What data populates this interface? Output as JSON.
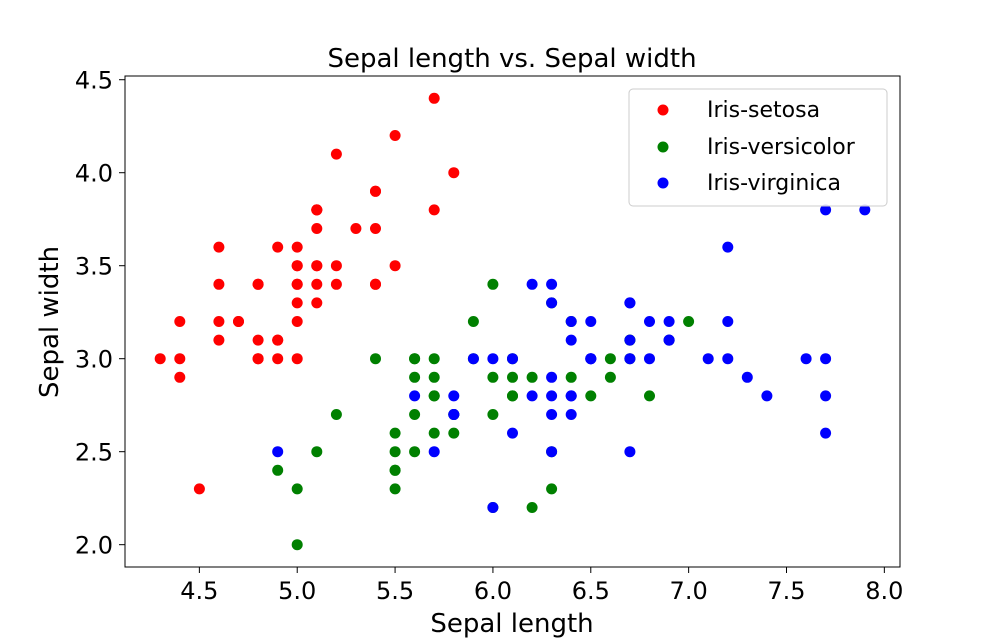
{
  "chart_data": {
    "type": "scatter",
    "title": "Sepal length vs. Sepal width",
    "xlabel": "Sepal length",
    "ylabel": "Sepal width",
    "xlim": [
      4.12,
      8.08
    ],
    "ylim": [
      1.88,
      4.52
    ],
    "xticks": [
      "4.5",
      "5.0",
      "5.5",
      "6.0",
      "6.5",
      "7.0",
      "7.5",
      "8.0"
    ],
    "yticks": [
      "2.0",
      "2.5",
      "3.0",
      "3.5",
      "4.0",
      "4.5"
    ],
    "grid": false,
    "legend_position": "top-right",
    "series": [
      {
        "name": "Iris-setosa",
        "color": "#ff0000",
        "points": [
          [
            5.1,
            3.5
          ],
          [
            4.9,
            3.0
          ],
          [
            4.7,
            3.2
          ],
          [
            4.6,
            3.1
          ],
          [
            5.0,
            3.6
          ],
          [
            5.4,
            3.9
          ],
          [
            4.6,
            3.4
          ],
          [
            5.0,
            3.4
          ],
          [
            4.4,
            2.9
          ],
          [
            4.9,
            3.1
          ],
          [
            5.4,
            3.7
          ],
          [
            4.8,
            3.4
          ],
          [
            4.8,
            3.0
          ],
          [
            4.3,
            3.0
          ],
          [
            5.8,
            4.0
          ],
          [
            5.7,
            4.4
          ],
          [
            5.4,
            3.9
          ],
          [
            5.1,
            3.5
          ],
          [
            5.7,
            3.8
          ],
          [
            5.1,
            3.8
          ],
          [
            5.4,
            3.4
          ],
          [
            5.1,
            3.7
          ],
          [
            4.6,
            3.6
          ],
          [
            5.1,
            3.3
          ],
          [
            4.8,
            3.4
          ],
          [
            5.0,
            3.0
          ],
          [
            5.0,
            3.4
          ],
          [
            5.2,
            3.5
          ],
          [
            5.2,
            3.4
          ],
          [
            4.7,
            3.2
          ],
          [
            4.8,
            3.1
          ],
          [
            5.4,
            3.4
          ],
          [
            5.2,
            4.1
          ],
          [
            5.5,
            4.2
          ],
          [
            4.9,
            3.1
          ],
          [
            5.0,
            3.2
          ],
          [
            5.5,
            3.5
          ],
          [
            4.9,
            3.6
          ],
          [
            4.4,
            3.0
          ],
          [
            5.1,
            3.4
          ],
          [
            5.0,
            3.5
          ],
          [
            4.5,
            2.3
          ],
          [
            4.4,
            3.2
          ],
          [
            5.0,
            3.5
          ],
          [
            5.1,
            3.8
          ],
          [
            4.8,
            3.0
          ],
          [
            5.1,
            3.8
          ],
          [
            4.6,
            3.2
          ],
          [
            5.3,
            3.7
          ],
          [
            5.0,
            3.3
          ]
        ]
      },
      {
        "name": "Iris-versicolor",
        "color": "#008000",
        "points": [
          [
            7.0,
            3.2
          ],
          [
            6.4,
            3.2
          ],
          [
            6.9,
            3.1
          ],
          [
            5.5,
            2.3
          ],
          [
            6.5,
            2.8
          ],
          [
            5.7,
            2.8
          ],
          [
            6.3,
            3.3
          ],
          [
            4.9,
            2.4
          ],
          [
            6.6,
            2.9
          ],
          [
            5.2,
            2.7
          ],
          [
            5.0,
            2.0
          ],
          [
            5.9,
            3.0
          ],
          [
            6.0,
            2.2
          ],
          [
            6.1,
            2.9
          ],
          [
            5.6,
            2.9
          ],
          [
            6.7,
            3.1
          ],
          [
            5.6,
            3.0
          ],
          [
            5.8,
            2.7
          ],
          [
            6.2,
            2.2
          ],
          [
            5.6,
            2.5
          ],
          [
            5.9,
            3.2
          ],
          [
            6.1,
            2.8
          ],
          [
            6.3,
            2.5
          ],
          [
            6.1,
            2.8
          ],
          [
            6.4,
            2.9
          ],
          [
            6.6,
            3.0
          ],
          [
            6.8,
            2.8
          ],
          [
            6.7,
            3.0
          ],
          [
            6.0,
            2.9
          ],
          [
            5.7,
            2.6
          ],
          [
            5.5,
            2.4
          ],
          [
            5.5,
            2.4
          ],
          [
            5.8,
            2.7
          ],
          [
            6.0,
            2.7
          ],
          [
            5.4,
            3.0
          ],
          [
            6.0,
            3.4
          ],
          [
            6.7,
            3.1
          ],
          [
            6.3,
            2.3
          ],
          [
            5.6,
            3.0
          ],
          [
            5.5,
            2.5
          ],
          [
            5.5,
            2.6
          ],
          [
            6.1,
            3.0
          ],
          [
            5.8,
            2.6
          ],
          [
            5.0,
            2.3
          ],
          [
            5.6,
            2.7
          ],
          [
            5.7,
            3.0
          ],
          [
            5.7,
            2.9
          ],
          [
            6.2,
            2.9
          ],
          [
            5.1,
            2.5
          ],
          [
            5.7,
            2.8
          ]
        ]
      },
      {
        "name": "Iris-virginica",
        "color": "#0000ff",
        "points": [
          [
            6.3,
            3.3
          ],
          [
            5.8,
            2.7
          ],
          [
            7.1,
            3.0
          ],
          [
            6.3,
            2.9
          ],
          [
            6.5,
            3.0
          ],
          [
            7.6,
            3.0
          ],
          [
            4.9,
            2.5
          ],
          [
            7.3,
            2.9
          ],
          [
            6.7,
            2.5
          ],
          [
            7.2,
            3.6
          ],
          [
            6.5,
            3.2
          ],
          [
            6.4,
            2.7
          ],
          [
            6.8,
            3.0
          ],
          [
            5.7,
            2.5
          ],
          [
            5.8,
            2.8
          ],
          [
            6.4,
            3.2
          ],
          [
            6.5,
            3.0
          ],
          [
            7.7,
            3.8
          ],
          [
            7.7,
            2.6
          ],
          [
            6.0,
            2.2
          ],
          [
            6.9,
            3.2
          ],
          [
            5.6,
            2.8
          ],
          [
            7.7,
            2.8
          ],
          [
            6.3,
            2.7
          ],
          [
            6.7,
            3.3
          ],
          [
            7.2,
            3.2
          ],
          [
            6.2,
            2.8
          ],
          [
            6.1,
            3.0
          ],
          [
            6.4,
            2.8
          ],
          [
            7.2,
            3.0
          ],
          [
            7.4,
            2.8
          ],
          [
            7.9,
            3.8
          ],
          [
            6.4,
            2.8
          ],
          [
            6.3,
            2.8
          ],
          [
            6.1,
            2.6
          ],
          [
            7.7,
            3.0
          ],
          [
            6.3,
            3.4
          ],
          [
            6.4,
            3.1
          ],
          [
            6.0,
            3.0
          ],
          [
            6.9,
            3.1
          ],
          [
            6.7,
            3.1
          ],
          [
            6.9,
            3.1
          ],
          [
            5.8,
            2.7
          ],
          [
            6.8,
            3.2
          ],
          [
            6.7,
            3.3
          ],
          [
            6.7,
            3.0
          ],
          [
            6.3,
            2.5
          ],
          [
            6.5,
            3.0
          ],
          [
            6.2,
            3.4
          ],
          [
            5.9,
            3.0
          ]
        ]
      }
    ]
  }
}
